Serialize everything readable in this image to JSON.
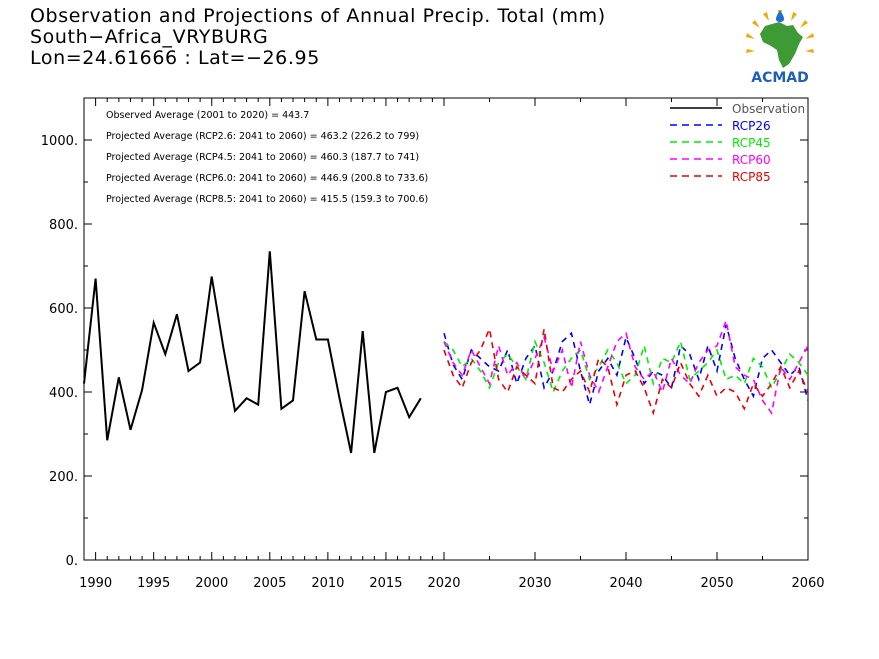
{
  "title": {
    "line1": "Observation and Projections of Annual Precip. Total (mm)",
    "line2": "South−Africa_VRYBURG",
    "line3": "Lon=24.61666 : Lat=−26.95"
  },
  "logo": {
    "text": "ACMAD",
    "icon": "acmad-africa-logo"
  },
  "stats": [
    "Observed Average (2001 to 2020) = 443.7",
    "Projected Average (RCP2.6: 2041 to 2060) = 463.2 (226.2 to 799)",
    "Projected Average (RCP4.5: 2041 to 2060) = 460.3 (187.7 to 741)",
    "Projected Average (RCP6.0: 2041 to 2060) = 446.9 (200.8 to 733.6)",
    "Projected Average (RCP8.5: 2041 to 2060) = 415.5 (159.3 to 700.6)"
  ],
  "chart_data": {
    "type": "line",
    "title": "Observation and Projections of Annual Precip. Total (mm)",
    "xlim": [
      1989,
      2060
    ],
    "ylim": [
      0,
      1100
    ],
    "x_ticks_left": [
      1990,
      1995,
      2000,
      2005,
      2010,
      2015,
      2020
    ],
    "x_ticks_right": [
      2030,
      2040,
      2050,
      2060
    ],
    "y_ticks": [
      0,
      200,
      400,
      600,
      800,
      1000
    ],
    "y_tick_labels": [
      "0.",
      "200.",
      "400.",
      "600.",
      "800.",
      "1000."
    ],
    "legend_position": "top-right",
    "series": [
      {
        "name": "Observation",
        "color": "#000000",
        "dash": "solid",
        "x": [
          1989,
          1990,
          1991,
          1992,
          1993,
          1994,
          1995,
          1996,
          1997,
          1998,
          1999,
          2000,
          2001,
          2002,
          2003,
          2004,
          2005,
          2006,
          2007,
          2008,
          2009,
          2010,
          2011,
          2012,
          2013,
          2014,
          2015,
          2016,
          2017,
          2018,
          2019,
          2020
        ],
        "values": [
          420,
          670,
          285,
          435,
          310,
          405,
          565,
          490,
          585,
          450,
          470,
          675,
          505,
          355,
          385,
          370,
          735,
          360,
          380,
          640,
          525,
          525,
          385,
          255,
          545,
          255,
          400,
          410,
          340,
          385,
          null,
          null
        ]
      },
      {
        "name": "RCP26",
        "color": "#0000ff",
        "dash": "dashed",
        "x": [
          2020,
          2021,
          2022,
          2023,
          2024,
          2025,
          2026,
          2027,
          2028,
          2029,
          2030,
          2031,
          2032,
          2033,
          2034,
          2035,
          2036,
          2037,
          2038,
          2039,
          2040,
          2041,
          2042,
          2043,
          2044,
          2045,
          2046,
          2047,
          2048,
          2049,
          2050,
          2051,
          2052,
          2053,
          2054,
          2055,
          2056,
          2057,
          2058,
          2059,
          2060
        ],
        "values": [
          540,
          465,
          430,
          500,
          480,
          460,
          450,
          500,
          420,
          480,
          510,
          410,
          450,
          520,
          540,
          450,
          370,
          450,
          480,
          440,
          530,
          480,
          420,
          450,
          440,
          410,
          510,
          490,
          430,
          510,
          450,
          560,
          480,
          430,
          390,
          480,
          500,
          470,
          440,
          460,
          380
        ]
      },
      {
        "name": "RCP45",
        "color": "#00ee00",
        "dash": "dashed",
        "x": [
          2020,
          2021,
          2022,
          2023,
          2024,
          2025,
          2026,
          2027,
          2028,
          2029,
          2030,
          2031,
          2032,
          2033,
          2034,
          2035,
          2036,
          2037,
          2038,
          2039,
          2040,
          2041,
          2042,
          2043,
          2044,
          2045,
          2046,
          2047,
          2048,
          2049,
          2050,
          2051,
          2052,
          2053,
          2054,
          2055,
          2056,
          2057,
          2058,
          2059,
          2060
        ],
        "values": [
          520,
          500,
          460,
          480,
          450,
          410,
          470,
          490,
          460,
          430,
          520,
          470,
          400,
          450,
          480,
          500,
          430,
          460,
          500,
          470,
          420,
          440,
          510,
          420,
          480,
          470,
          520,
          430,
          450,
          470,
          500,
          430,
          440,
          420,
          480,
          460,
          410,
          450,
          490,
          470,
          440
        ]
      },
      {
        "name": "RCP60",
        "color": "#ff00ff",
        "dash": "dashed",
        "x": [
          2020,
          2021,
          2022,
          2023,
          2024,
          2025,
          2026,
          2027,
          2028,
          2029,
          2030,
          2031,
          2032,
          2033,
          2034,
          2035,
          2036,
          2037,
          2038,
          2039,
          2040,
          2041,
          2042,
          2043,
          2044,
          2045,
          2046,
          2047,
          2048,
          2049,
          2050,
          2051,
          2052,
          2053,
          2054,
          2055,
          2056,
          2057,
          2058,
          2059,
          2060
        ],
        "values": [
          520,
          470,
          440,
          500,
          460,
          420,
          510,
          440,
          470,
          430,
          480,
          530,
          450,
          500,
          410,
          520,
          440,
          400,
          460,
          520,
          540,
          460,
          430,
          450,
          400,
          480,
          440,
          420,
          470,
          500,
          510,
          570,
          460,
          440,
          430,
          380,
          350,
          460,
          430,
          470,
          510
        ]
      },
      {
        "name": "RCP85",
        "color": "#ee0000",
        "dash": "dashed",
        "x": [
          2020,
          2021,
          2022,
          2023,
          2024,
          2025,
          2026,
          2027,
          2028,
          2029,
          2030,
          2031,
          2032,
          2033,
          2034,
          2035,
          2036,
          2037,
          2038,
          2039,
          2040,
          2041,
          2042,
          2043,
          2044,
          2045,
          2046,
          2047,
          2048,
          2049,
          2050,
          2051,
          2052,
          2053,
          2054,
          2055,
          2056,
          2057,
          2058,
          2059,
          2060
        ],
        "values": [
          500,
          440,
          410,
          470,
          500,
          550,
          430,
          400,
          460,
          440,
          420,
          550,
          410,
          400,
          430,
          450,
          400,
          480,
          460,
          370,
          440,
          450,
          410,
          350,
          430,
          410,
          470,
          420,
          390,
          440,
          390,
          410,
          400,
          360,
          420,
          390,
          420,
          460,
          410,
          450,
          400
        ]
      }
    ]
  }
}
